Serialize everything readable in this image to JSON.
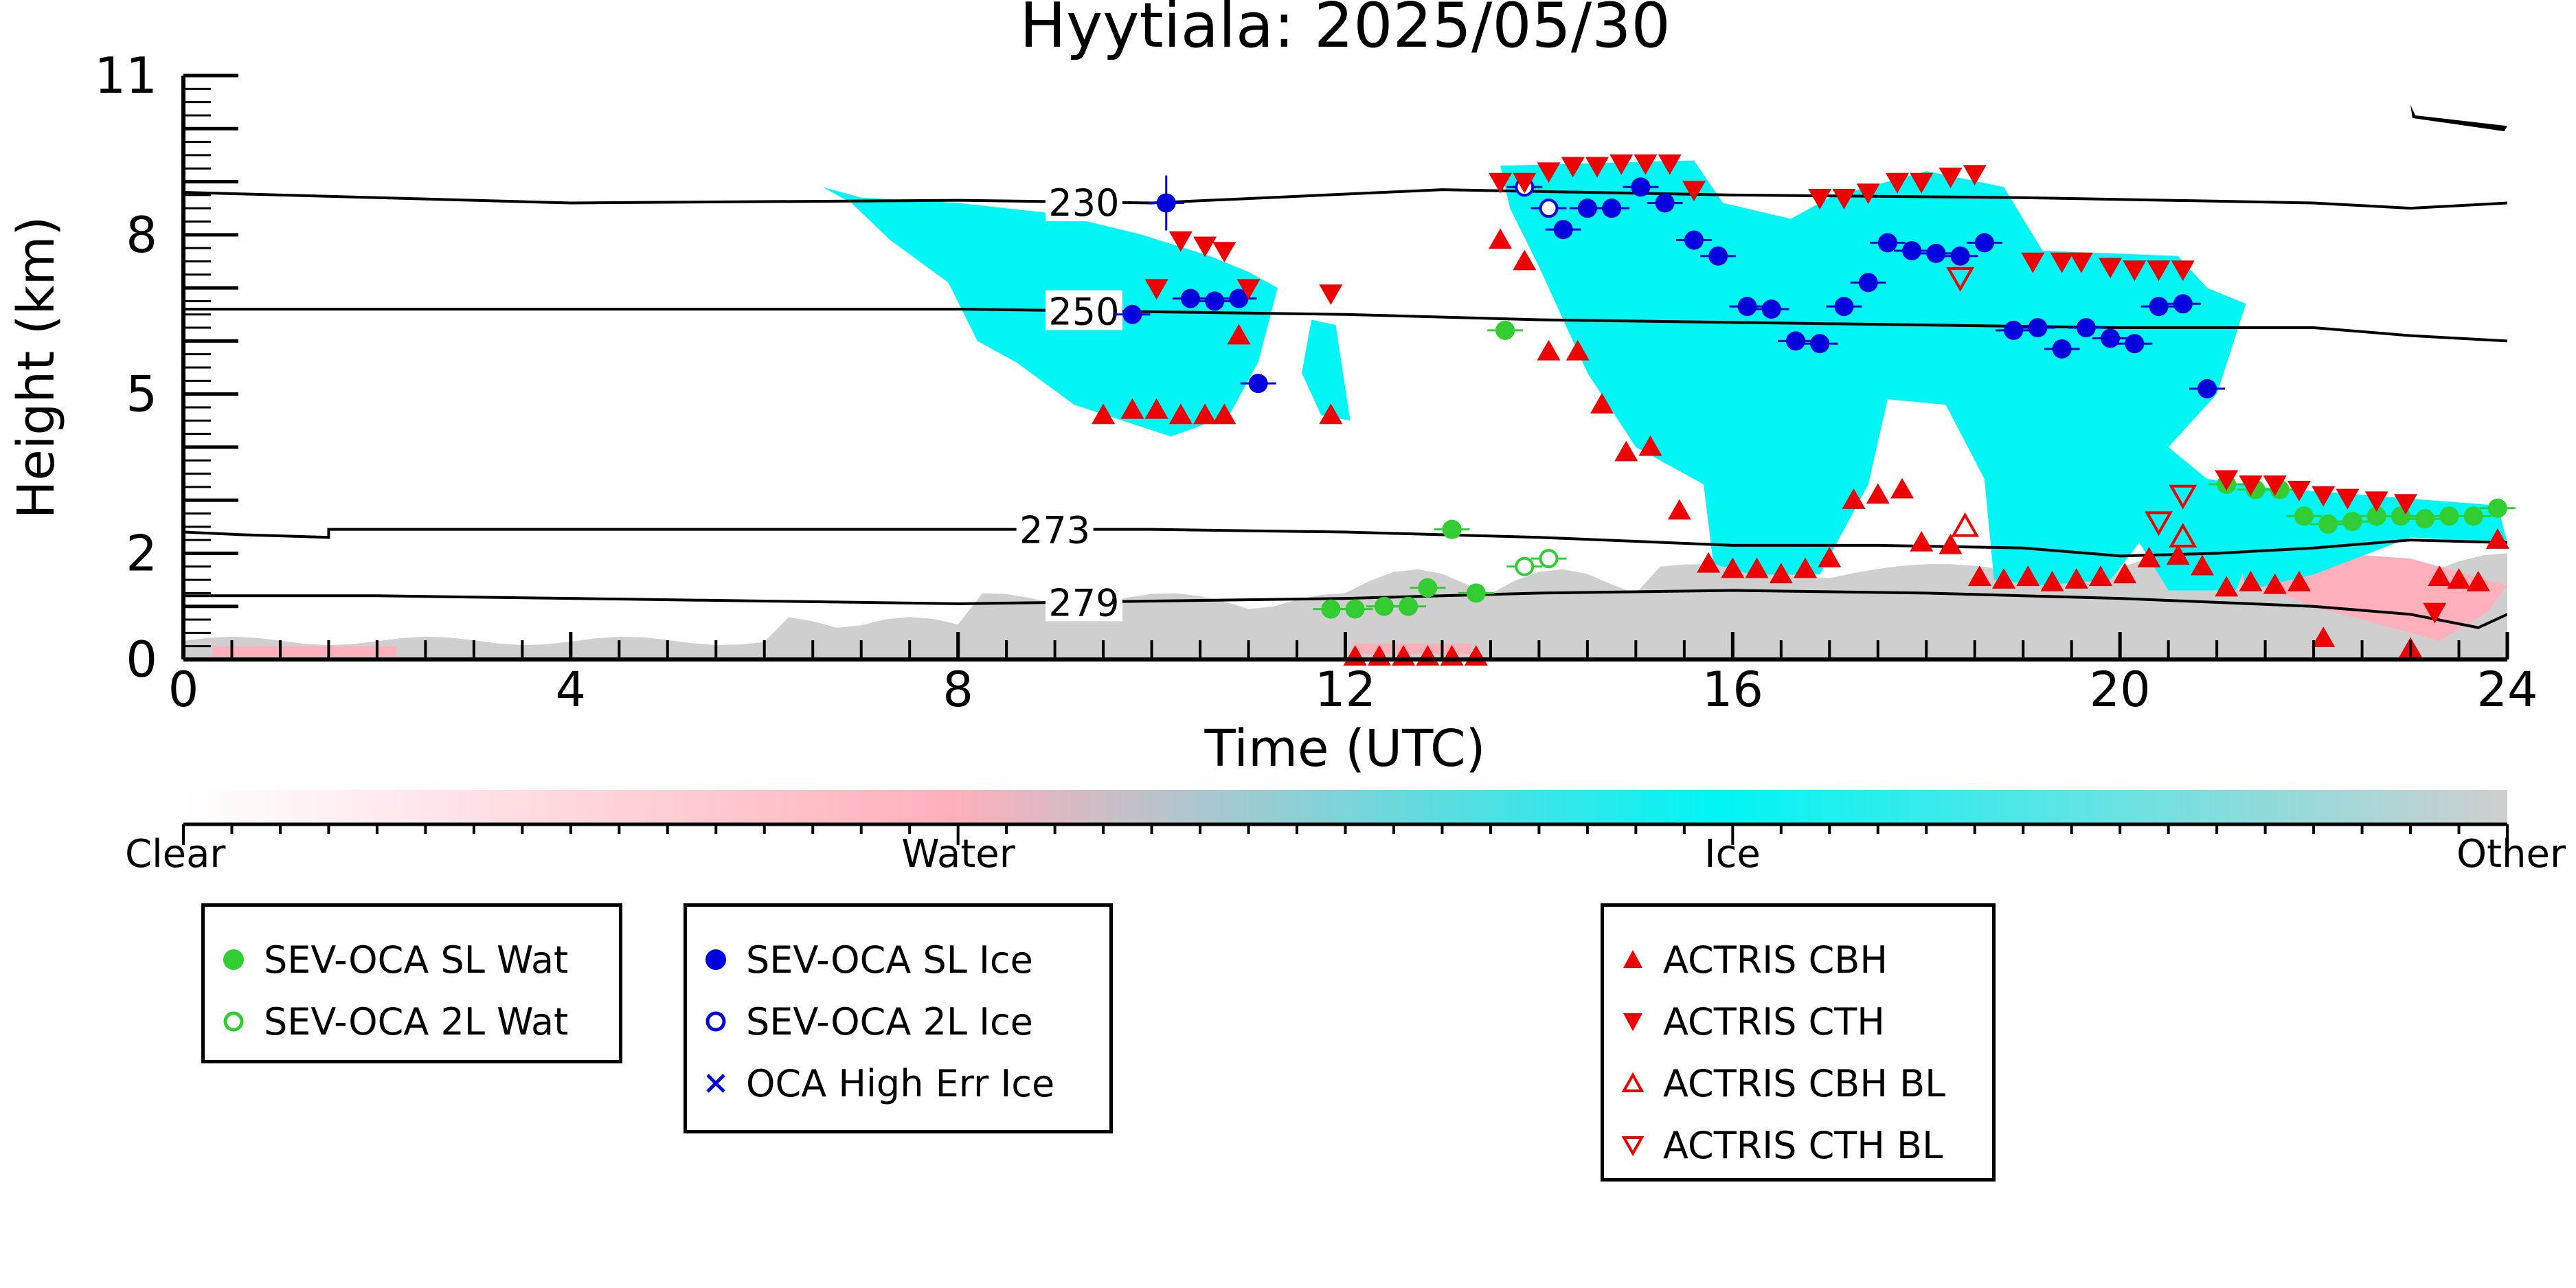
{
  "chart_data": {
    "type": "scatter",
    "title": "Hyytiala: 2025/05/30",
    "xlabel": "Time (UTC)",
    "ylabel": "Height (km)",
    "xlim": [
      0,
      24
    ],
    "ylim": [
      0,
      11
    ],
    "x_ticks": [
      0,
      4,
      8,
      12,
      16,
      20,
      24
    ],
    "y_ticks": [
      0,
      2,
      5,
      8,
      11
    ],
    "isotherms": [
      {
        "label": "230",
        "points": [
          [
            0,
            8.8
          ],
          [
            4,
            8.6
          ],
          [
            8,
            8.65
          ],
          [
            10,
            8.6
          ],
          [
            13,
            8.85
          ],
          [
            16,
            8.75
          ],
          [
            19,
            8.7
          ],
          [
            22,
            8.6
          ],
          [
            23,
            8.5
          ],
          [
            24,
            8.6
          ]
        ]
      },
      {
        "label": "250",
        "points": [
          [
            0,
            6.6
          ],
          [
            4,
            6.6
          ],
          [
            8,
            6.6
          ],
          [
            10,
            6.55
          ],
          [
            12,
            6.5
          ],
          [
            14,
            6.4
          ],
          [
            16,
            6.35
          ],
          [
            18,
            6.3
          ],
          [
            20,
            6.25
          ],
          [
            22,
            6.25
          ],
          [
            23,
            6.1
          ],
          [
            24,
            6.0
          ]
        ]
      },
      {
        "label": "273",
        "points": [
          [
            0,
            2.4
          ],
          [
            0.6,
            2.35
          ],
          [
            1.5,
            2.3
          ],
          [
            1.5,
            2.45
          ],
          [
            4,
            2.45
          ],
          [
            8,
            2.45
          ],
          [
            10,
            2.45
          ],
          [
            12,
            2.4
          ],
          [
            14,
            2.3
          ],
          [
            16,
            2.15
          ],
          [
            17.5,
            2.15
          ],
          [
            19,
            2.1
          ],
          [
            20,
            1.95
          ],
          [
            21,
            2.0
          ],
          [
            22,
            2.1
          ],
          [
            23,
            2.25
          ],
          [
            24,
            2.2
          ]
        ]
      },
      {
        "label": "279",
        "points": [
          [
            0,
            1.2
          ],
          [
            2,
            1.2
          ],
          [
            4,
            1.15
          ],
          [
            6,
            1.1
          ],
          [
            8,
            1.05
          ],
          [
            10,
            1.1
          ],
          [
            12,
            1.15
          ],
          [
            14,
            1.25
          ],
          [
            16,
            1.3
          ],
          [
            18,
            1.25
          ],
          [
            20,
            1.15
          ],
          [
            22,
            1.0
          ],
          [
            23,
            0.85
          ],
          [
            23.7,
            0.6
          ],
          [
            24,
            0.85
          ]
        ]
      }
    ],
    "series": [
      {
        "name": "SEV-OCA SL Wat",
        "marker": "filled-circle",
        "color": "#33cc33",
        "points": [
          [
            11.85,
            0.95
          ],
          [
            12.1,
            0.95
          ],
          [
            12.4,
            1.0
          ],
          [
            12.65,
            1.0
          ],
          [
            12.85,
            1.35
          ],
          [
            13.1,
            2.45
          ],
          [
            13.35,
            1.25
          ],
          [
            13.65,
            6.2
          ],
          [
            21.1,
            3.3
          ],
          [
            21.4,
            3.2
          ],
          [
            21.65,
            3.2
          ],
          [
            21.9,
            2.7
          ],
          [
            22.15,
            2.55
          ],
          [
            22.4,
            2.6
          ],
          [
            22.65,
            2.7
          ],
          [
            22.9,
            2.7
          ],
          [
            23.15,
            2.65
          ],
          [
            23.4,
            2.7
          ],
          [
            23.65,
            2.7
          ],
          [
            23.9,
            2.85
          ]
        ]
      },
      {
        "name": "SEV-OCA 2L Wat",
        "marker": "open-circle",
        "color": "#33cc33",
        "points": [
          [
            13.85,
            1.75
          ],
          [
            14.1,
            1.9
          ]
        ]
      },
      {
        "name": "SEV-OCA SL Ice",
        "marker": "filled-circle",
        "color": "#0000dd",
        "points": [
          [
            9.8,
            6.5
          ],
          [
            10.15,
            8.6
          ],
          [
            10.4,
            6.8
          ],
          [
            10.65,
            6.75
          ],
          [
            10.9,
            6.8
          ],
          [
            11.1,
            5.2
          ],
          [
            14.25,
            8.1
          ],
          [
            14.5,
            8.5
          ],
          [
            14.75,
            8.5
          ],
          [
            15.05,
            8.9
          ],
          [
            15.3,
            8.6
          ],
          [
            15.6,
            7.9
          ],
          [
            15.85,
            7.6
          ],
          [
            16.15,
            6.65
          ],
          [
            16.4,
            6.6
          ],
          [
            16.65,
            6.0
          ],
          [
            16.9,
            5.95
          ],
          [
            17.15,
            6.65
          ],
          [
            17.4,
            7.1
          ],
          [
            17.6,
            7.85
          ],
          [
            17.85,
            7.7
          ],
          [
            18.1,
            7.65
          ],
          [
            18.35,
            7.6
          ],
          [
            18.6,
            7.85
          ],
          [
            18.9,
            6.2
          ],
          [
            19.15,
            6.25
          ],
          [
            19.4,
            5.85
          ],
          [
            19.65,
            6.25
          ],
          [
            19.9,
            6.05
          ],
          [
            20.15,
            5.95
          ],
          [
            20.4,
            6.65
          ],
          [
            20.65,
            6.7
          ],
          [
            20.9,
            5.1
          ]
        ]
      },
      {
        "name": "SEV-OCA 2L Ice",
        "marker": "open-circle",
        "color": "#0000dd",
        "points": [
          [
            13.85,
            8.9
          ],
          [
            14.1,
            8.5
          ]
        ]
      },
      {
        "name": "OCA High Err Ice",
        "marker": "cross",
        "color": "#0000dd",
        "points": []
      },
      {
        "name": "ACTRIS CBH",
        "marker": "triangle-up",
        "color": "#ee0000",
        "points": [
          [
            9.5,
            4.6
          ],
          [
            9.8,
            4.7
          ],
          [
            10.05,
            4.7
          ],
          [
            10.3,
            4.6
          ],
          [
            10.55,
            4.6
          ],
          [
            10.75,
            4.6
          ],
          [
            10.9,
            6.1
          ],
          [
            11.85,
            4.6
          ],
          [
            12.1,
            0.05
          ],
          [
            12.35,
            0.05
          ],
          [
            12.6,
            0.05
          ],
          [
            12.85,
            0.05
          ],
          [
            13.1,
            0.05
          ],
          [
            13.35,
            0.05
          ],
          [
            13.6,
            7.9
          ],
          [
            13.85,
            7.5
          ],
          [
            14.1,
            5.8
          ],
          [
            14.4,
            5.8
          ],
          [
            14.65,
            4.8
          ],
          [
            14.9,
            3.9
          ],
          [
            15.15,
            4.0
          ],
          [
            15.45,
            2.8
          ],
          [
            15.75,
            1.8
          ],
          [
            16.0,
            1.7
          ],
          [
            16.25,
            1.7
          ],
          [
            16.5,
            1.6
          ],
          [
            16.75,
            1.7
          ],
          [
            17.0,
            1.9
          ],
          [
            17.25,
            3.0
          ],
          [
            17.5,
            3.1
          ],
          [
            17.75,
            3.2
          ],
          [
            17.95,
            2.2
          ],
          [
            18.25,
            2.15
          ],
          [
            18.55,
            1.55
          ],
          [
            18.8,
            1.5
          ],
          [
            19.05,
            1.55
          ],
          [
            19.3,
            1.45
          ],
          [
            19.55,
            1.5
          ],
          [
            19.8,
            1.55
          ],
          [
            20.05,
            1.6
          ],
          [
            20.3,
            1.9
          ],
          [
            20.6,
            1.95
          ],
          [
            20.85,
            1.75
          ],
          [
            21.1,
            1.35
          ],
          [
            21.35,
            1.45
          ],
          [
            21.6,
            1.4
          ],
          [
            21.85,
            1.45
          ],
          [
            22.1,
            0.4
          ],
          [
            23.0,
            0.2
          ],
          [
            23.3,
            1.55
          ],
          [
            23.5,
            1.5
          ],
          [
            23.7,
            1.45
          ],
          [
            23.9,
            2.25
          ]
        ]
      },
      {
        "name": "ACTRIS CTH",
        "marker": "triangle-down",
        "color": "#ee0000",
        "points": [
          [
            10.05,
            7.0
          ],
          [
            10.3,
            7.9
          ],
          [
            10.55,
            7.8
          ],
          [
            10.75,
            7.7
          ],
          [
            11.0,
            7.0
          ],
          [
            11.85,
            6.9
          ],
          [
            13.6,
            9.0
          ],
          [
            13.85,
            9.0
          ],
          [
            14.1,
            9.2
          ],
          [
            14.35,
            9.3
          ],
          [
            14.6,
            9.3
          ],
          [
            14.85,
            9.35
          ],
          [
            15.1,
            9.35
          ],
          [
            15.35,
            9.35
          ],
          [
            15.6,
            8.85
          ],
          [
            16.9,
            8.7
          ],
          [
            17.15,
            8.7
          ],
          [
            17.4,
            8.8
          ],
          [
            17.7,
            9.0
          ],
          [
            17.95,
            9.0
          ],
          [
            18.25,
            9.1
          ],
          [
            18.5,
            9.15
          ],
          [
            19.1,
            7.5
          ],
          [
            19.4,
            7.5
          ],
          [
            19.6,
            7.5
          ],
          [
            19.9,
            7.4
          ],
          [
            20.15,
            7.35
          ],
          [
            20.4,
            7.35
          ],
          [
            20.65,
            7.35
          ],
          [
            21.1,
            3.4
          ],
          [
            21.35,
            3.3
          ],
          [
            21.6,
            3.3
          ],
          [
            21.85,
            3.2
          ],
          [
            22.1,
            3.1
          ],
          [
            22.35,
            3.05
          ],
          [
            22.65,
            3.0
          ],
          [
            22.95,
            2.95
          ],
          [
            23.25,
            0.9
          ]
        ]
      },
      {
        "name": "ACTRIS CBH BL",
        "marker": "open-triangle-up",
        "color": "#ee0000",
        "points": [
          [
            18.4,
            2.5
          ],
          [
            20.65,
            2.3
          ]
        ]
      },
      {
        "name": "ACTRIS CTH BL",
        "marker": "open-triangle-down",
        "color": "#ee0000",
        "points": [
          [
            18.35,
            7.2
          ],
          [
            20.4,
            2.6
          ],
          [
            20.65,
            3.1
          ]
        ]
      }
    ],
    "colorbar": {
      "labels": [
        "Clear",
        "Water",
        "Ice",
        "Other"
      ],
      "colors": [
        "#ffffff",
        "#ffb0ba",
        "#00f5f5",
        "#cfcfcf"
      ]
    },
    "legend_placement": "below-plot"
  },
  "legends": {
    "box1": [
      {
        "label": "SEV-OCA SL Wat",
        "marker": "filled-circle",
        "color": "#33cc33"
      },
      {
        "label": "SEV-OCA 2L Wat",
        "marker": "open-circle",
        "color": "#33cc33"
      }
    ],
    "box2": [
      {
        "label": "SEV-OCA SL Ice",
        "marker": "filled-circle",
        "color": "#0000dd"
      },
      {
        "label": "SEV-OCA 2L Ice",
        "marker": "open-circle",
        "color": "#0000dd"
      },
      {
        "label": "OCA High Err Ice",
        "marker": "cross",
        "color": "#0000dd"
      }
    ],
    "box3": [
      {
        "label": "ACTRIS CBH",
        "marker": "triangle-up",
        "color": "#ee0000"
      },
      {
        "label": "ACTRIS CTH",
        "marker": "triangle-down",
        "color": "#ee0000"
      },
      {
        "label": "ACTRIS CBH BL",
        "marker": "open-triangle-up",
        "color": "#ee0000"
      },
      {
        "label": "ACTRIS CTH BL",
        "marker": "open-triangle-down",
        "color": "#ee0000"
      }
    ]
  }
}
